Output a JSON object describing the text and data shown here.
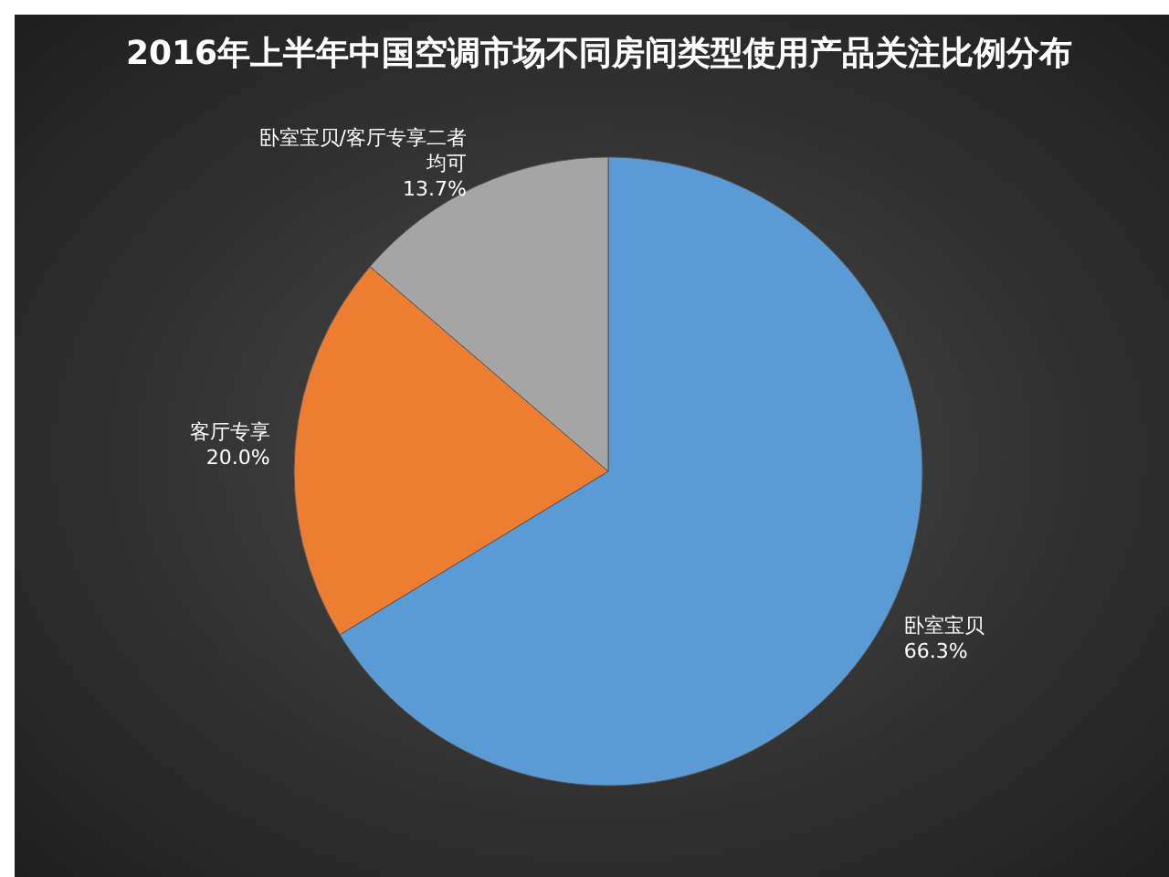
{
  "chart_data": {
    "type": "pie",
    "title": "2016年上半年中国空调市场不同房间类型使用产品关注比例分布",
    "categories": [
      "卧室宝贝",
      "客厅专享",
      "卧室宝贝/客厅专享二者均可"
    ],
    "values": [
      66.3,
      20.0,
      13.7
    ],
    "value_labels": [
      "66.3%",
      "20.0%",
      "13.7%"
    ],
    "colors": [
      "#5b9bd5",
      "#ed7d31",
      "#a5a5a5"
    ],
    "legend": false
  }
}
